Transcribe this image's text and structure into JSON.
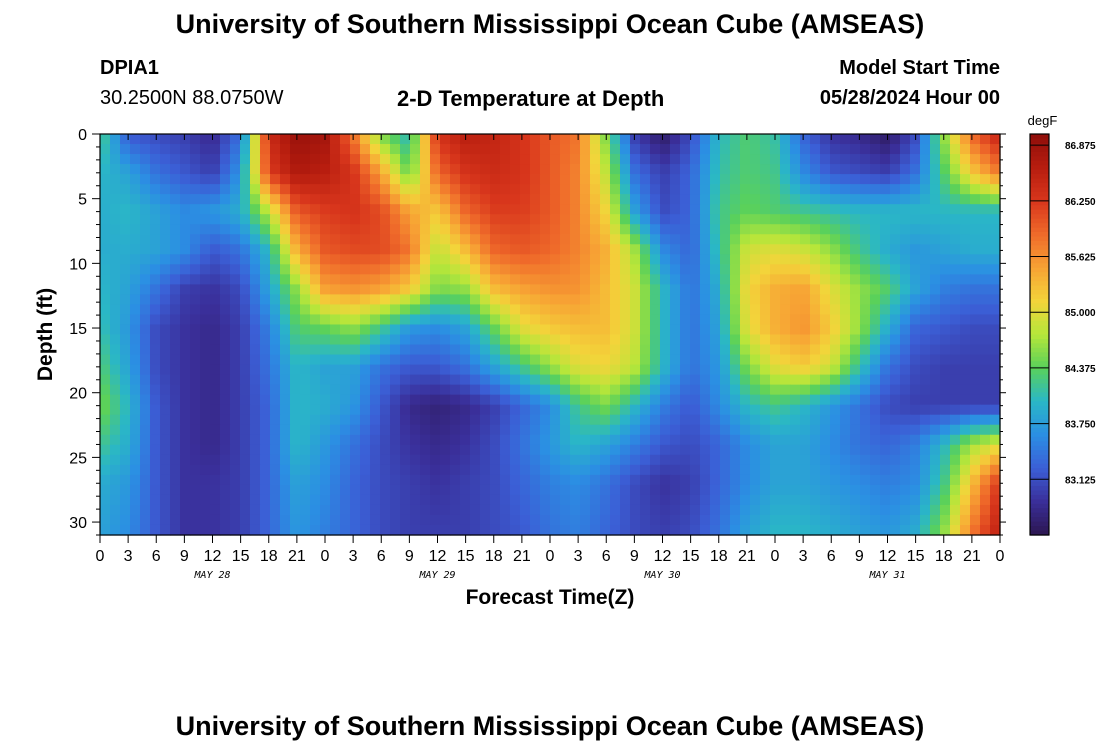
{
  "header": {
    "title": "University of Southern Mississippi Ocean Cube (AMSEAS)",
    "footer_title": "University of Southern Mississippi Ocean Cube (AMSEAS)",
    "station": "DPIA1",
    "coords": "30.2500N  88.0750W",
    "subtitle": "2-D Temperature at Depth",
    "model_label": "Model Start Time",
    "model_time": "05/28/2024 Hour 00"
  },
  "colors": {
    "ramp": [
      "#2c1650",
      "#3a2f9a",
      "#3b5fd6",
      "#2b8fe3",
      "#2ab7c6",
      "#5ad15a",
      "#b6e63a",
      "#f3d43a",
      "#f7a234",
      "#ef6a2a",
      "#d8361c",
      "#b71d0f",
      "#8f0e0a"
    ]
  },
  "chart_data": {
    "type": "heatmap",
    "xlabel": "Forecast Time(Z)",
    "ylabel": "Depth (ft)",
    "x_ticks": [
      "0",
      "3",
      "6",
      "9",
      "12",
      "15",
      "18",
      "21",
      "0",
      "3",
      "6",
      "9",
      "12",
      "15",
      "18",
      "21",
      "0",
      "3",
      "6",
      "9",
      "12",
      "15",
      "18",
      "21",
      "0",
      "3",
      "6",
      "9",
      "12",
      "15",
      "18",
      "21",
      "0"
    ],
    "x_range_hours": [
      0,
      96
    ],
    "dates": [
      {
        "label": "MAY 28",
        "hour": 12
      },
      {
        "label": "MAY 29",
        "hour": 36
      },
      {
        "label": "MAY 30",
        "hour": 60
      },
      {
        "label": "MAY 31",
        "hour": 84
      }
    ],
    "y_ticks": [
      0,
      5,
      10,
      15,
      20,
      25,
      30
    ],
    "y_range": [
      0,
      31
    ],
    "colorbar": {
      "unit": "degF",
      "min": 82.5,
      "max": 87.0,
      "ticks": [
        "86.875",
        "86.250",
        "85.625",
        "85.000",
        "84.375",
        "83.750",
        "83.125"
      ]
    },
    "depth_levels_ft": [
      0,
      3,
      6,
      9,
      12,
      15,
      18,
      21,
      24,
      27,
      31
    ],
    "time_hours": [
      0,
      3,
      6,
      9,
      12,
      15,
      18,
      21,
      24,
      27,
      30,
      33,
      36,
      39,
      42,
      45,
      48,
      51,
      54,
      57,
      60,
      63,
      66,
      69,
      72,
      75,
      78,
      81,
      84,
      87,
      90,
      93,
      96
    ],
    "temperature_degF": [
      [
        84.3,
        83.2,
        83.1,
        83.0,
        82.8,
        83.4,
        86.4,
        86.9,
        86.8,
        85.8,
        84.5,
        84.0,
        86.3,
        86.6,
        86.5,
        86.3,
        86.0,
        85.8,
        84.5,
        83.0,
        82.6,
        83.1,
        84.0,
        84.3,
        84.1,
        83.3,
        82.9,
        82.8,
        82.6,
        83.1,
        84.6,
        85.9,
        86.5
      ],
      [
        84.0,
        83.8,
        83.4,
        83.2,
        83.0,
        83.7,
        86.2,
        86.7,
        86.6,
        86.3,
        85.5,
        84.4,
        85.9,
        86.3,
        86.4,
        86.3,
        86.0,
        85.7,
        84.8,
        83.4,
        83.0,
        83.3,
        84.1,
        84.3,
        84.2,
        83.6,
        83.2,
        83.1,
        83.0,
        83.4,
        84.3,
        85.2,
        85.8
      ],
      [
        83.9,
        84.0,
        83.8,
        83.6,
        83.7,
        83.9,
        84.8,
        86.0,
        86.2,
        86.3,
        86.1,
        85.5,
        85.2,
        85.9,
        86.2,
        86.2,
        86.0,
        85.7,
        85.1,
        83.8,
        83.1,
        83.3,
        84.2,
        84.4,
        84.3,
        84.2,
        84.1,
        84.0,
        84.0,
        84.0,
        84.0,
        84.0,
        84.0
      ],
      [
        83.9,
        83.9,
        83.8,
        83.6,
        83.2,
        83.4,
        84.0,
        85.4,
        86.0,
        86.1,
        86.1,
        85.8,
        84.8,
        85.3,
        85.9,
        86.0,
        85.9,
        85.7,
        85.4,
        84.7,
        83.6,
        83.3,
        84.1,
        84.9,
        85.0,
        84.9,
        84.6,
        84.2,
        83.9,
        83.7,
        83.8,
        83.9,
        83.9
      ],
      [
        84.0,
        83.8,
        83.4,
        83.0,
        82.9,
        83.1,
        83.8,
        84.6,
        85.5,
        85.6,
        85.5,
        85.2,
        84.5,
        84.6,
        85.3,
        85.5,
        85.6,
        85.6,
        85.3,
        84.9,
        84.0,
        83.4,
        83.9,
        85.1,
        85.4,
        85.5,
        85.0,
        84.6,
        84.3,
        83.8,
        83.5,
        83.4,
        83.4
      ],
      [
        84.1,
        83.7,
        83.1,
        82.9,
        82.8,
        83.0,
        83.5,
        84.3,
        84.4,
        84.6,
        84.2,
        83.7,
        83.6,
        83.8,
        84.4,
        85.0,
        85.2,
        85.3,
        85.3,
        84.9,
        84.0,
        83.4,
        83.8,
        85.0,
        85.4,
        85.6,
        85.2,
        84.6,
        83.9,
        83.3,
        83.2,
        83.1,
        83.1
      ],
      [
        84.3,
        83.8,
        83.1,
        82.9,
        82.8,
        83.0,
        83.4,
        84.0,
        83.8,
        83.8,
        83.4,
        83.2,
        83.2,
        83.4,
        83.8,
        84.2,
        84.6,
        85.0,
        85.1,
        84.8,
        84.0,
        83.4,
        83.7,
        84.5,
        85.0,
        85.2,
        84.9,
        84.1,
        83.4,
        83.1,
        83.0,
        83.0,
        83.0
      ],
      [
        84.5,
        84.0,
        83.2,
        82.9,
        82.8,
        83.0,
        83.3,
        84.0,
        83.9,
        83.7,
        83.2,
        82.8,
        82.7,
        82.8,
        83.0,
        83.3,
        83.6,
        84.2,
        84.5,
        84.0,
        83.5,
        83.2,
        83.6,
        84.0,
        84.2,
        84.0,
        83.7,
        83.4,
        83.1,
        83.0,
        83.0,
        83.0,
        83.0
      ],
      [
        84.2,
        83.9,
        83.2,
        82.9,
        82.8,
        83.0,
        83.3,
        84.0,
        83.7,
        83.4,
        83.1,
        82.9,
        82.8,
        82.9,
        83.1,
        83.4,
        83.7,
        84.0,
        83.8,
        83.5,
        83.2,
        83.1,
        83.3,
        83.6,
        83.8,
        83.8,
        83.6,
        83.4,
        83.3,
        83.5,
        84.0,
        84.7,
        85.0
      ],
      [
        83.9,
        83.7,
        83.2,
        82.9,
        82.9,
        83.0,
        83.3,
        83.8,
        83.6,
        83.3,
        83.1,
        83.0,
        82.9,
        83.0,
        83.1,
        83.3,
        83.5,
        83.6,
        83.4,
        83.1,
        82.9,
        83.0,
        83.3,
        83.6,
        83.8,
        83.8,
        83.7,
        83.6,
        83.5,
        83.6,
        84.2,
        85.3,
        86.3
      ],
      [
        83.8,
        83.6,
        83.2,
        82.9,
        82.9,
        83.0,
        83.3,
        83.7,
        83.5,
        83.3,
        83.1,
        83.0,
        83.0,
        83.0,
        83.1,
        83.2,
        83.4,
        83.5,
        83.3,
        83.1,
        83.0,
        83.1,
        83.4,
        83.8,
        84.0,
        84.0,
        83.9,
        83.8,
        83.7,
        83.9,
        84.6,
        85.8,
        86.6
      ]
    ]
  }
}
